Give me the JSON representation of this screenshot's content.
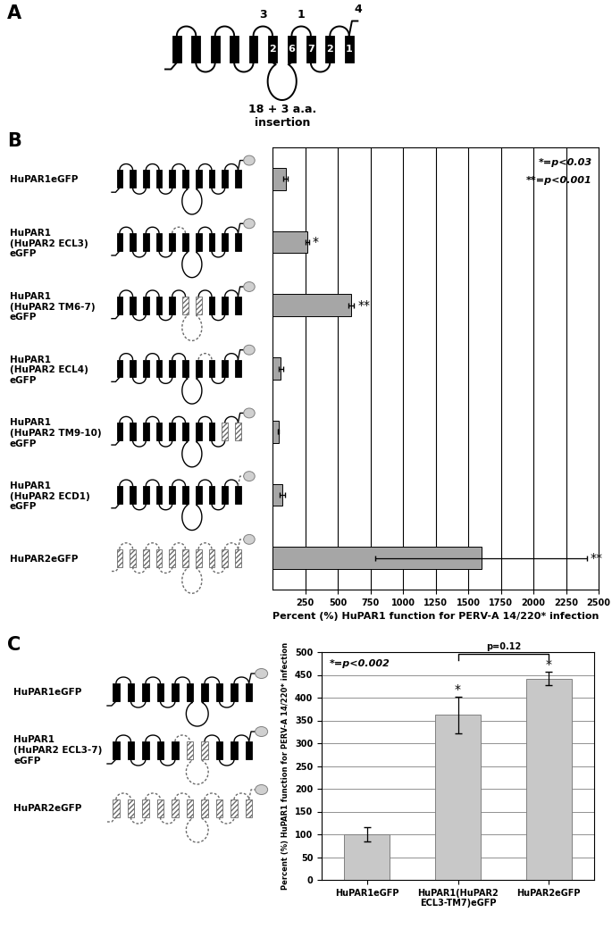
{
  "panel_labels": [
    "A",
    "B",
    "C"
  ],
  "topology_diagram": {
    "loop_labels": [
      "3",
      "1",
      "4"
    ],
    "box_labels": [
      "2",
      "6",
      "7",
      "2",
      "1"
    ],
    "insertion_label": "18 + 3 a.a.\ninsertion"
  },
  "chart_data": [
    {
      "type": "bar",
      "orientation": "horizontal",
      "categories": [
        "HuPAR1eGFP",
        "HuPAR1\n(HuPAR2 ECL3)\neGFP",
        "HuPAR1\n(HuPAR2 TM6-7)\neGFP",
        "HuPAR1\n(HuPAR2 ECL4)\neGFP",
        "HuPAR1\n(HuPAR2 TM9-10)\neGFP",
        "HuPAR1\n(HuPAR2 ECD1)\neGFP",
        "HuPAR2eGFP"
      ],
      "values": [
        100,
        265,
        605,
        65,
        45,
        75,
        1600
      ],
      "errors": [
        15,
        15,
        20,
        20,
        5,
        18,
        810
      ],
      "significance": [
        null,
        "*",
        "**",
        null,
        null,
        null,
        "**"
      ],
      "annotations": [
        "*=p<0.03",
        "**=p<0.001"
      ],
      "xlabel": "Percent (%) HuPAR1 function for PERV-A 14/220* infection",
      "xlim": [
        0,
        2500
      ],
      "xticks": [
        250,
        500,
        750,
        1000,
        1250,
        1500,
        1750,
        2000,
        2250,
        2500
      ],
      "grid": true,
      "color": "#a6a6a6"
    },
    {
      "type": "bar",
      "categories": [
        "HuPAR1eGFP",
        "HuPAR1(HuPAR2\nECL3-TM7)eGFP",
        "HuPAR2eGFP"
      ],
      "values": [
        100,
        362,
        442
      ],
      "errors": [
        15,
        40,
        15
      ],
      "significance": [
        null,
        "*",
        "*"
      ],
      "annotations": [
        "*=p<0.002"
      ],
      "bracket": {
        "between": [
          "HuPAR1(HuPAR2\nECL3-TM7)eGFP",
          "HuPAR2eGFP"
        ],
        "label": "p=0.12"
      },
      "ylabel": "Percent (%) HuPAR1 function for PERV-A 14/220* infection",
      "ylim": [
        0,
        500
      ],
      "yticks": [
        0,
        50,
        100,
        150,
        200,
        250,
        300,
        350,
        400,
        450,
        500
      ],
      "grid": true,
      "color": "#c8c8c8"
    }
  ],
  "schematic_labels_C": [
    "HuPAR1eGFP",
    "HuPAR1\n(HuPAR2 ECL3-7)\neGFP",
    "HuPAR2eGFP"
  ]
}
